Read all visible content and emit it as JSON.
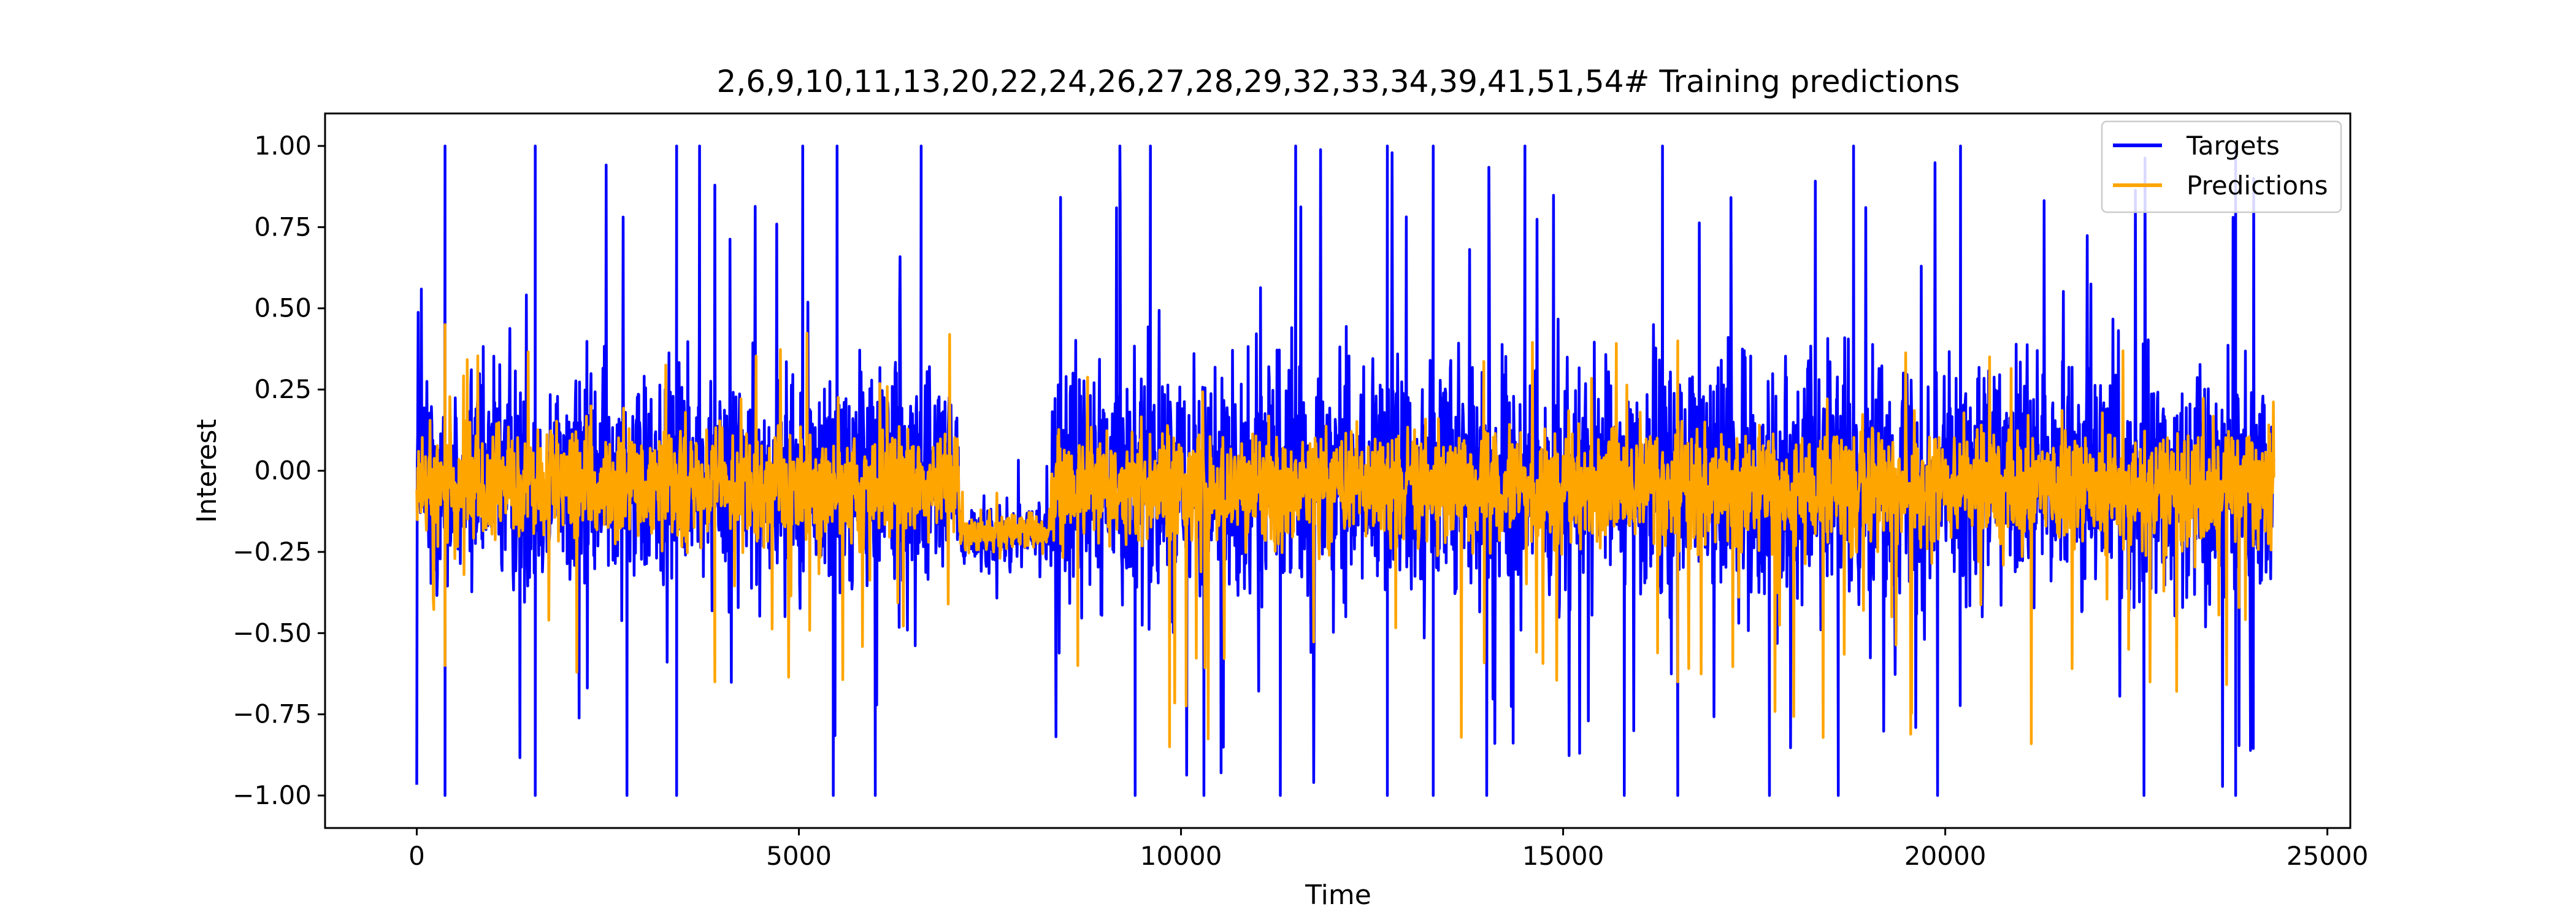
{
  "chart_data": {
    "type": "line",
    "title": "2,6,9,10,11,13,20,22,24,26,27,28,29,32,33,34,39,41,51,54# Training predictions",
    "xlabel": "Time",
    "ylabel": "Interest",
    "xlim": [
      -1200,
      25300
    ],
    "ylim": [
      -1.1,
      1.1
    ],
    "xticks": [
      0,
      5000,
      10000,
      15000,
      20000,
      25000
    ],
    "xtick_labels": [
      "0",
      "5000",
      "10000",
      "15000",
      "20000",
      "25000"
    ],
    "yticks": [
      -1.0,
      -0.75,
      -0.5,
      -0.25,
      0.0,
      0.25,
      0.5,
      0.75,
      1.0
    ],
    "ytick_labels": [
      "−1.00",
      "−0.75",
      "−0.50",
      "−0.25",
      "0.00",
      "0.25",
      "0.50",
      "0.75",
      "1.00"
    ],
    "grid": false,
    "legend_position": "upper right",
    "n_points": 24300,
    "series": [
      {
        "name": "Targets",
        "color": "#0000ff",
        "segments": [
          {
            "x_start": 0,
            "x_end": 7100,
            "center": -0.1,
            "typical_range": [
              -0.5,
              0.45
            ],
            "extreme_range": [
              -1.0,
              1.0
            ]
          },
          {
            "x_start": 7100,
            "x_end": 8300,
            "center": -0.2,
            "typical_range": [
              -0.35,
              -0.05
            ],
            "extreme_range": [
              -0.4,
              0.05
            ]
          },
          {
            "x_start": 8300,
            "x_end": 24300,
            "center": -0.1,
            "typical_range": [
              -0.55,
              0.5
            ],
            "extreme_range": [
              -1.0,
              1.0
            ]
          }
        ],
        "spikes": [
          {
            "x": 370,
            "y": 1.0
          },
          {
            "x": 1550,
            "y": 1.0
          },
          {
            "x": 3400,
            "y": 1.0
          },
          {
            "x": 3700,
            "y": 1.0
          },
          {
            "x": 5050,
            "y": 1.0
          },
          {
            "x": 5500,
            "y": 1.0
          },
          {
            "x": 6600,
            "y": 1.0
          },
          {
            "x": 9200,
            "y": 1.0
          },
          {
            "x": 9600,
            "y": 1.0
          },
          {
            "x": 11500,
            "y": 1.0
          },
          {
            "x": 12700,
            "y": 1.0
          },
          {
            "x": 13300,
            "y": 1.0
          },
          {
            "x": 14500,
            "y": 1.0
          },
          {
            "x": 16300,
            "y": 1.0
          },
          {
            "x": 18800,
            "y": 1.0
          },
          {
            "x": 20200,
            "y": 1.0
          },
          {
            "x": 23800,
            "y": 1.0
          },
          {
            "x": 370,
            "y": -1.0
          },
          {
            "x": 1550,
            "y": -1.0
          },
          {
            "x": 2750,
            "y": -1.0
          },
          {
            "x": 3400,
            "y": -1.0
          },
          {
            "x": 5450,
            "y": -1.0
          },
          {
            "x": 6000,
            "y": -1.0
          },
          {
            "x": 9400,
            "y": -1.0
          },
          {
            "x": 10300,
            "y": -1.0
          },
          {
            "x": 11300,
            "y": -1.0
          },
          {
            "x": 12700,
            "y": -1.0
          },
          {
            "x": 13300,
            "y": -1.0
          },
          {
            "x": 14000,
            "y": -1.0
          },
          {
            "x": 15800,
            "y": -1.0
          },
          {
            "x": 16500,
            "y": -1.0
          },
          {
            "x": 17700,
            "y": -1.0
          },
          {
            "x": 18600,
            "y": -1.0
          },
          {
            "x": 19900,
            "y": -1.0
          },
          {
            "x": 22600,
            "y": -1.0
          },
          {
            "x": 23800,
            "y": -1.0
          }
        ]
      },
      {
        "name": "Predictions",
        "color": "#ffa500",
        "segments": [
          {
            "x_start": 0,
            "x_end": 7100,
            "center": -0.05,
            "typical_range": [
              -0.3,
              0.2
            ],
            "extreme_range": [
              -0.65,
              0.45
            ]
          },
          {
            "x_start": 7100,
            "x_end": 8300,
            "center": -0.2,
            "typical_range": [
              -0.28,
              -0.1
            ],
            "extreme_range": [
              -0.3,
              -0.05
            ]
          },
          {
            "x_start": 8300,
            "x_end": 24300,
            "center": -0.08,
            "typical_range": [
              -0.3,
              0.2
            ],
            "extreme_range": [
              -0.85,
              0.4
            ]
          }
        ],
        "spikes": [
          {
            "x": 370,
            "y": 0.45
          },
          {
            "x": 370,
            "y": -0.6
          },
          {
            "x": 3900,
            "y": -0.65
          },
          {
            "x": 8650,
            "y": -0.6
          },
          {
            "x": 9850,
            "y": -0.85
          },
          {
            "x": 14600,
            "y": 0.3
          },
          {
            "x": 16500,
            "y": 0.4
          },
          {
            "x": 16500,
            "y": -0.65
          },
          {
            "x": 19300,
            "y": -0.45
          },
          {
            "x": 22400,
            "y": -0.55
          }
        ]
      }
    ]
  }
}
